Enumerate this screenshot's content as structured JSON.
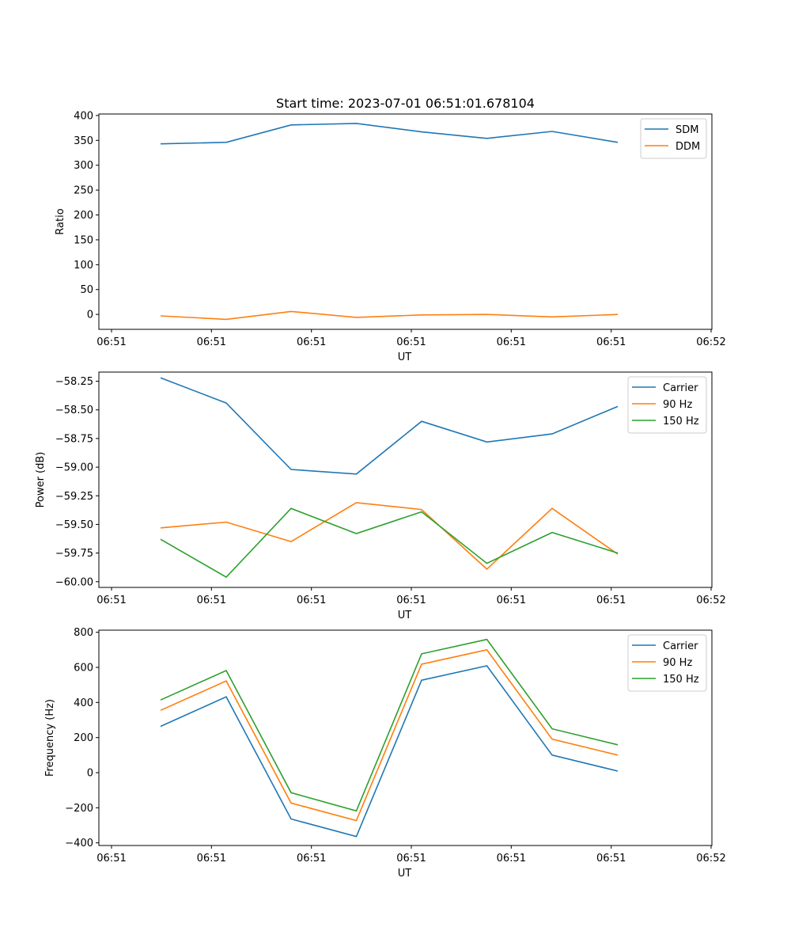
{
  "chart_data": [
    {
      "type": "line",
      "title": "Start time: 2023-07-01 06:51:01.678104",
      "xlabel": "UT",
      "ylabel": "Ratio",
      "x_tick_labels": [
        "06:51",
        "06:51",
        "06:51",
        "06:51",
        "06:51",
        "06:51",
        "06:52"
      ],
      "y_ticks": [
        0,
        50,
        100,
        150,
        200,
        250,
        300,
        350,
        400
      ],
      "y_tick_labels": [
        "0",
        "50",
        "100",
        "150",
        "200",
        "250",
        "300",
        "350",
        "400"
      ],
      "ylim": [
        -30,
        403
      ],
      "x_index": [
        0,
        1,
        2,
        3,
        4,
        5,
        6,
        7
      ],
      "legend_position": "top-right",
      "grid": false,
      "series": [
        {
          "name": "SDM",
          "color": "#1f77b4",
          "values": [
            343,
            346,
            381,
            384,
            367,
            354,
            368,
            346
          ]
        },
        {
          "name": "DDM",
          "color": "#ff7f0e",
          "values": [
            -3,
            -10,
            6,
            -6,
            -1,
            0,
            -5,
            0
          ]
        }
      ]
    },
    {
      "type": "line",
      "title": "",
      "xlabel": "UT",
      "ylabel": "Power (dB)",
      "x_tick_labels": [
        "06:51",
        "06:51",
        "06:51",
        "06:51",
        "06:51",
        "06:51",
        "06:52"
      ],
      "y_ticks": [
        -60.0,
        -59.75,
        -59.5,
        -59.25,
        -59.0,
        -58.75,
        -58.5,
        -58.25
      ],
      "y_tick_labels": [
        "−60.00",
        "−59.75",
        "−59.50",
        "−59.25",
        "−59.00",
        "−58.75",
        "−58.50",
        "−58.25"
      ],
      "ylim": [
        -60.05,
        -58.17
      ],
      "x_index": [
        0,
        1,
        2,
        3,
        4,
        5,
        6,
        7
      ],
      "legend_position": "top-right",
      "grid": false,
      "series": [
        {
          "name": "Carrier",
          "color": "#1f77b4",
          "values": [
            -58.22,
            -58.44,
            -59.02,
            -59.06,
            -58.6,
            -58.78,
            -58.71,
            -58.47
          ]
        },
        {
          "name": "90 Hz",
          "color": "#ff7f0e",
          "values": [
            -59.53,
            -59.48,
            -59.65,
            -59.31,
            -59.37,
            -59.89,
            -59.36,
            -59.76
          ]
        },
        {
          "name": "150 Hz",
          "color": "#2ca02c",
          "values": [
            -59.63,
            -59.96,
            -59.36,
            -59.58,
            -59.39,
            -59.84,
            -59.57,
            -59.75
          ]
        }
      ]
    },
    {
      "type": "line",
      "title": "",
      "xlabel": "UT",
      "ylabel": "Frequency (Hz)",
      "x_tick_labels": [
        "06:51",
        "06:51",
        "06:51",
        "06:51",
        "06:51",
        "06:51",
        "06:52"
      ],
      "y_ticks": [
        -400,
        -200,
        0,
        200,
        400,
        600,
        800
      ],
      "y_tick_labels": [
        "−400",
        "−200",
        "0",
        "200",
        "400",
        "600",
        "800"
      ],
      "ylim": [
        -415,
        812
      ],
      "x_index": [
        0,
        1,
        2,
        3,
        4,
        5,
        6,
        7
      ],
      "legend_position": "top-right",
      "grid": false,
      "series": [
        {
          "name": "Carrier",
          "color": "#1f77b4",
          "values": [
            264,
            432,
            -264,
            -364,
            527,
            609,
            100,
            9
          ]
        },
        {
          "name": "90 Hz",
          "color": "#ff7f0e",
          "values": [
            355,
            523,
            -173,
            -273,
            618,
            700,
            191,
            100
          ]
        },
        {
          "name": "150 Hz",
          "color": "#2ca02c",
          "values": [
            414,
            582,
            -114,
            -218,
            677,
            759,
            250,
            159
          ]
        }
      ]
    }
  ]
}
